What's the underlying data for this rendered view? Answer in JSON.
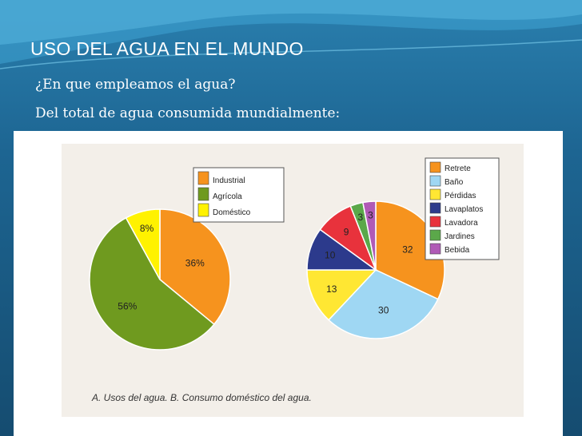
{
  "slide": {
    "title": "USO DEL AGUA EN EL MUNDO",
    "lines": [
      "¿En que empleamos el agua?",
      "Del total de agua consumida mundialmente:"
    ]
  },
  "figure_caption": "A. Usos del agua. B. Consumo doméstico del agua.",
  "chart_data": [
    {
      "type": "pie",
      "legend_placement": "top-right",
      "slices": [
        {
          "label": "Industrial",
          "value": 36,
          "display": "36%",
          "color": "#f6931e"
        },
        {
          "label": "Agrícola",
          "value": 56,
          "display": "56%",
          "color": "#6f9a1f"
        },
        {
          "label": "Doméstico",
          "value": 8,
          "display": "8%",
          "color": "#fff200"
        }
      ]
    },
    {
      "type": "pie",
      "legend_placement": "top-right",
      "slices": [
        {
          "label": "Retrete",
          "value": 32,
          "display": "32",
          "color": "#f6931e"
        },
        {
          "label": "Baño",
          "value": 30,
          "display": "30",
          "color": "#9fd7f3"
        },
        {
          "label": "Pérdidas",
          "value": 13,
          "display": "13",
          "color": "#ffe733"
        },
        {
          "label": "Lavaplatos",
          "value": 10,
          "display": "10",
          "color": "#2c3a8c"
        },
        {
          "label": "Lavadora",
          "value": 9,
          "display": "9",
          "color": "#e8323c"
        },
        {
          "label": "Jardines",
          "value": 3,
          "display": "3",
          "color": "#5ba84a"
        },
        {
          "label": "Bebida",
          "value": 3,
          "display": "3",
          "color": "#b05ab6"
        }
      ]
    }
  ]
}
